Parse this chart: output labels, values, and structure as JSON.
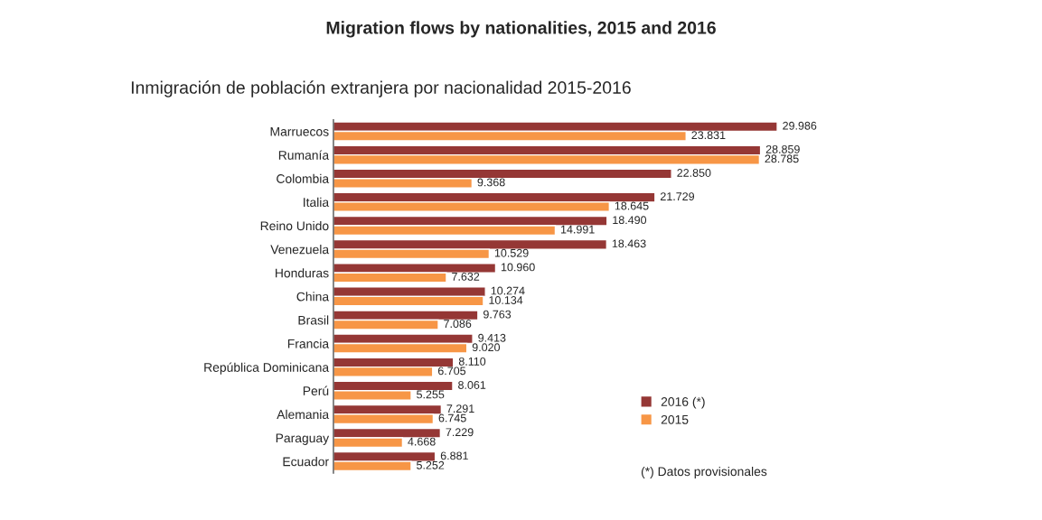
{
  "chart_data": {
    "type": "bar",
    "orientation": "horizontal",
    "title": "Migration flows by nationalities, 2015 and 2016",
    "subtitle": "Inmigración de población extranjera por nacionalidad 2015-2016",
    "categories": [
      "Marruecos",
      "Rumanía",
      "Colombia",
      "Italia",
      "Reino Unido",
      "Venezuela",
      "Honduras",
      "China",
      "Brasil",
      "Francia",
      "República Dominicana",
      "Perú",
      "Alemania",
      "Paraguay",
      "Ecuador"
    ],
    "series": [
      {
        "name": "2016 (*)",
        "color": "#953735",
        "values": [
          29986,
          28859,
          22850,
          21729,
          18490,
          18463,
          10960,
          10274,
          9763,
          9413,
          8110,
          8061,
          7291,
          7229,
          6881
        ],
        "value_labels": [
          "29.986",
          "28.859",
          "22.850",
          "21.729",
          "18.490",
          "18.463",
          "10.960",
          "10.274",
          "9.763",
          "9.413",
          "8.110",
          "8.061",
          "7.291",
          "7.229",
          "6.881"
        ]
      },
      {
        "name": "2015",
        "color": "#f79646",
        "values": [
          23831,
          28785,
          9368,
          18645,
          14991,
          10529,
          7632,
          10134,
          7086,
          9020,
          6705,
          5255,
          6745,
          4668,
          5252
        ],
        "value_labels": [
          "23.831",
          "28.785",
          "9.368",
          "18.645",
          "14.991",
          "10.529",
          "7.632",
          "10.134",
          "7.086",
          "9.020",
          "6.705",
          "5.255",
          "6.745",
          "4.668",
          "5.252"
        ]
      }
    ],
    "annotations": [
      "(*) Datos provisionales"
    ],
    "legend": "bottom right",
    "grid": false,
    "tick_labels": "y"
  }
}
